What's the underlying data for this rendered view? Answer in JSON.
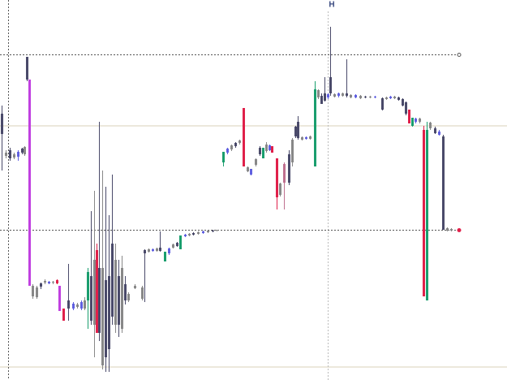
{
  "marker": {
    "label": "H"
  }
}
